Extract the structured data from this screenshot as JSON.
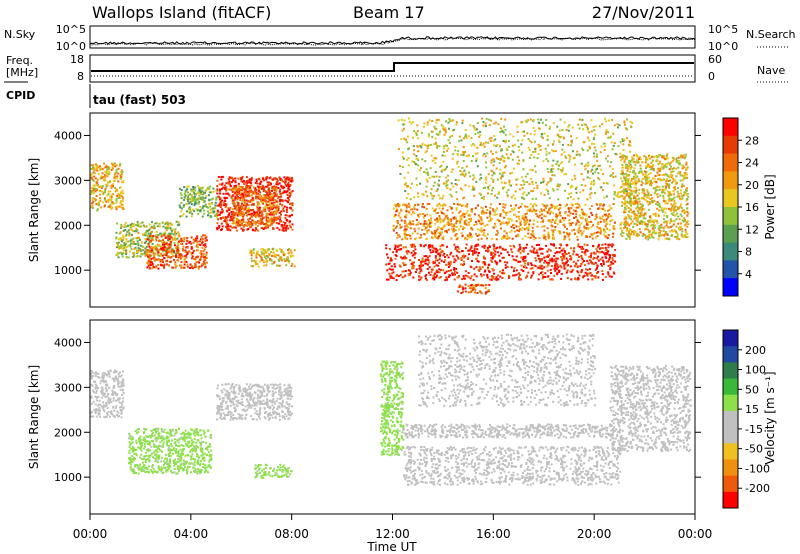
{
  "header": {
    "station": "Wallops Island (fitACF)",
    "beam": "Beam 17",
    "date": "27/Nov/2011"
  },
  "noise_panel": {
    "left_label": "N.Sky",
    "right_label": "N.Search",
    "left_ticks": [
      "10^5",
      "10^0"
    ],
    "right_ticks": [
      "10^5",
      "10^0"
    ]
  },
  "freq_panel": {
    "left_label_1": "Freq.",
    "left_label_2": "[MHz]",
    "right_label": "Nave",
    "left_ticks": [
      "18",
      "8"
    ],
    "right_ticks": [
      "60",
      "0"
    ],
    "cpid_label": "CPID",
    "cpid_text": "tau (fast) 503"
  },
  "colors": {
    "power_scale": [
      "#0000ff",
      "#2255aa",
      "#3c8a7a",
      "#5aa050",
      "#8fc23a",
      "#e8c81e",
      "#f09a10",
      "#ef6a08",
      "#e83a05",
      "#ff0000"
    ],
    "velocity_scale": [
      "#1a1aa0",
      "#1f4aa0",
      "#2e7d4a",
      "#39b83a",
      "#8de04a",
      "#c0c0c0",
      "#c0c0c0",
      "#f0c020",
      "#f09010",
      "#ef5a0a",
      "#ff0000"
    ],
    "ground_scatter": "#c0c0c0"
  },
  "chart_data": [
    {
      "type": "heatmap",
      "panel": "power",
      "ylabel": "Slant Range [km]",
      "yticks": [
        "1000",
        "2000",
        "3000",
        "4000"
      ],
      "ylim": [
        180,
        4500
      ],
      "xlim": [
        0,
        24
      ],
      "colorbar": {
        "label": "Power [dB]",
        "ticks": [
          "4",
          "8",
          "12",
          "16",
          "20",
          "24",
          "28"
        ],
        "range": [
          0,
          30
        ]
      },
      "regions": [
        {
          "t0": 0.0,
          "t1": 1.3,
          "r0": 2350,
          "r1": 3400,
          "level": 18
        },
        {
          "t0": 1.0,
          "t1": 3.5,
          "r0": 1300,
          "r1": 2100,
          "level": 14
        },
        {
          "t0": 2.2,
          "t1": 4.6,
          "r0": 1050,
          "r1": 1800,
          "level": 24
        },
        {
          "t0": 5.0,
          "t1": 8.0,
          "r0": 1900,
          "r1": 3100,
          "level": 27
        },
        {
          "t0": 5.6,
          "t1": 7.4,
          "r0": 2000,
          "r1": 2900,
          "level": 22
        },
        {
          "t0": 6.3,
          "t1": 8.1,
          "r0": 1100,
          "r1": 1500,
          "level": 18
        },
        {
          "t0": 3.5,
          "t1": 5.0,
          "r0": 2200,
          "r1": 2900,
          "level": 12
        },
        {
          "t0": 11.7,
          "t1": 20.8,
          "r0": 800,
          "r1": 1600,
          "level": 27
        },
        {
          "t0": 12.0,
          "t1": 20.8,
          "r0": 1700,
          "r1": 2500,
          "level": 20
        },
        {
          "t0": 12.2,
          "t1": 21.5,
          "r0": 2600,
          "r1": 4400,
          "level": 16
        },
        {
          "t0": 21.0,
          "t1": 23.7,
          "r0": 1700,
          "r1": 3600,
          "level": 17
        },
        {
          "t0": 14.5,
          "t1": 15.8,
          "r0": 500,
          "r1": 700,
          "level": 24
        }
      ]
    },
    {
      "type": "heatmap",
      "panel": "velocity",
      "ylabel": "Slant Range [km]",
      "yticks": [
        "1000",
        "2000",
        "3000",
        "4000"
      ],
      "ylim": [
        180,
        4500
      ],
      "xlim": [
        0,
        24
      ],
      "xlabel": "Time UT",
      "xticks": [
        "00:00",
        "04:00",
        "08:00",
        "12:00",
        "16:00",
        "20:00",
        "00:00"
      ],
      "colorbar": {
        "label": "Velocity [m s⁻¹]",
        "ticks": [
          "200",
          "100",
          "50",
          "15",
          "-15",
          "-50",
          "-100",
          "-200"
        ],
        "range": [
          -250,
          250
        ]
      },
      "regions": [
        {
          "t0": 0.0,
          "t1": 1.3,
          "r0": 2350,
          "r1": 3400,
          "kind": "ground"
        },
        {
          "t0": 1.5,
          "t1": 4.8,
          "r0": 1100,
          "r1": 2100,
          "kind": "v",
          "value": 40
        },
        {
          "t0": 5.0,
          "t1": 8.0,
          "r0": 2300,
          "r1": 3100,
          "kind": "ground"
        },
        {
          "t0": 6.5,
          "t1": 8.0,
          "r0": 1000,
          "r1": 1300,
          "kind": "v",
          "value": 40
        },
        {
          "t0": 11.5,
          "t1": 12.4,
          "r0": 1500,
          "r1": 3600,
          "kind": "v",
          "value": 40
        },
        {
          "t0": 12.4,
          "t1": 21.0,
          "r0": 850,
          "r1": 1700,
          "kind": "ground"
        },
        {
          "t0": 12.4,
          "t1": 20.8,
          "r0": 1900,
          "r1": 2200,
          "kind": "ground"
        },
        {
          "t0": 20.6,
          "t1": 23.8,
          "r0": 1600,
          "r1": 3500,
          "kind": "ground"
        },
        {
          "t0": 13.0,
          "t1": 20.0,
          "r0": 2600,
          "r1": 4200,
          "kind": "v",
          "value": -30
        }
      ]
    }
  ]
}
